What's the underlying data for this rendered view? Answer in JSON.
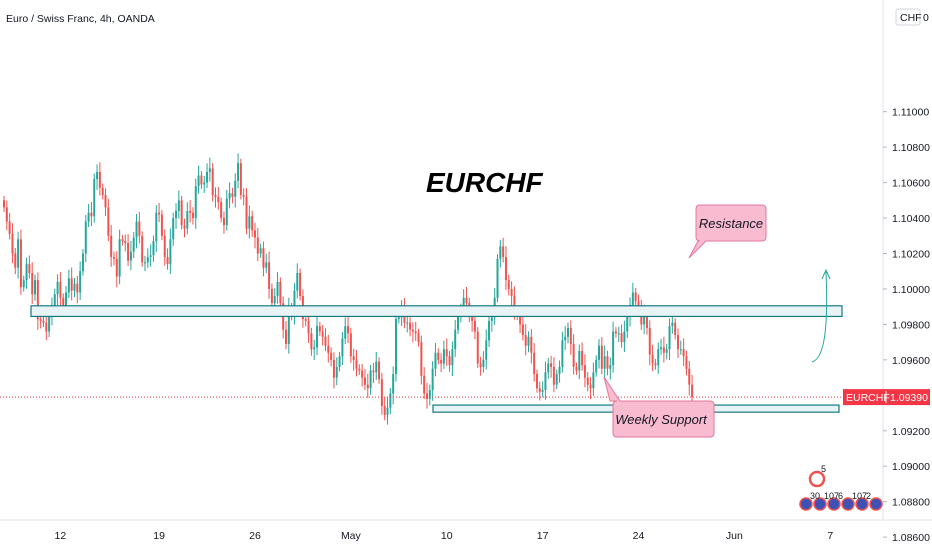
{
  "header": {
    "symbol_title": "Euro / Swiss Franc, 4h, OANDA",
    "currency_label": "CHF",
    "currency_suffix": "0"
  },
  "chart_data": {
    "type": "candlestick",
    "title": "EURCHF",
    "ylim": [
      1.0855,
      1.1163
    ],
    "y_ticks": [
      "1.11000",
      "1.10800",
      "1.10600",
      "1.10400",
      "1.10200",
      "1.10000",
      "1.09800",
      "1.09600",
      "1.09400",
      "1.09200",
      "1.09000",
      "1.08800",
      "1.08600"
    ],
    "y_tick_values": [
      1.11,
      1.108,
      1.106,
      1.104,
      1.102,
      1.1,
      1.098,
      1.096,
      1.094,
      1.092,
      1.09,
      1.088,
      1.086
    ],
    "x_ticks": [
      "12",
      "19",
      "26",
      "May",
      "10",
      "17",
      "24",
      "Jun",
      "7"
    ],
    "x_tick_index": [
      20,
      55,
      89,
      123,
      157,
      191,
      225,
      259,
      293
    ],
    "current_price": {
      "symbol": "EURCHF",
      "value": "1.09390",
      "color": "#f23645"
    },
    "candle_closes": [
      1.1046,
      1.1038,
      1.1031,
      1.102,
      1.1012,
      1.1028,
      1.1001,
      1.1005,
      1.1014,
      1.1009,
      1.0997,
      1.1005,
      1.0983,
      1.0982,
      1.0981,
      1.0976,
      1.0985,
      1.0989,
      1.0997,
      1.1004,
      1.0995,
      1.099,
      1.0998,
      1.1006,
      1.0999,
      1.1003,
      1.0998,
      1.101,
      1.102,
      1.1038,
      1.1043,
      1.1041,
      1.1062,
      1.1066,
      1.1057,
      1.1053,
      1.1046,
      1.103,
      1.1018,
      1.1017,
      1.1007,
      1.1028,
      1.1027,
      1.1026,
      1.1016,
      1.1021,
      1.1029,
      1.1038,
      1.103,
      1.1015,
      1.1015,
      1.1018,
      1.1019,
      1.1027,
      1.1043,
      1.1042,
      1.103,
      1.1018,
      1.1014,
      1.1028,
      1.104,
      1.1044,
      1.105,
      1.1036,
      1.1034,
      1.1044,
      1.1043,
      1.104,
      1.1058,
      1.1064,
      1.1059,
      1.106,
      1.1066,
      1.1068,
      1.1053,
      1.1052,
      1.1049,
      1.104,
      1.1036,
      1.1051,
      1.1054,
      1.1052,
      1.1061,
      1.1071,
      1.1053,
      1.1052,
      1.1034,
      1.1041,
      1.1033,
      1.1029,
      1.102,
      1.1023,
      1.1012,
      1.1015,
      1.1,
      1.0992,
      1.0996,
      1.1004,
      1.0992,
      1.0977,
      1.0969,
      1.0989,
      1.0986,
      1.0999,
      1.1009,
      1.0996,
      1.0983,
      1.0982,
      1.0975,
      1.0966,
      1.0967,
      1.0979,
      1.0976,
      1.0973,
      1.0968,
      1.0964,
      1.096,
      1.095,
      1.0956,
      1.0962,
      1.0972,
      1.0979,
      1.0975,
      1.0962,
      1.096,
      1.0955,
      1.0954,
      1.095,
      1.0946,
      1.0944,
      1.0954,
      1.0953,
      1.0959,
      1.0949,
      1.0934,
      1.0929,
      1.0933,
      1.0941,
      1.0952,
      1.0983,
      1.0984,
      1.099,
      1.0981,
      1.0981,
      1.0977,
      1.0976,
      1.0975,
      1.097,
      1.0951,
      1.0941,
      1.0938,
      1.0943,
      1.0955,
      1.0964,
      1.096,
      1.0958,
      1.0966,
      1.0962,
      1.0957,
      1.0966,
      1.0977,
      1.0986,
      1.0988,
      1.0995,
      1.0992,
      1.0985,
      1.0982,
      1.0976,
      1.0958,
      1.0956,
      1.096,
      1.0971,
      1.0982,
      1.0984,
      1.0995,
      1.1017,
      1.1024,
      1.1018,
      1.1005,
      1.1,
      1.0996,
      1.0987,
      1.0985,
      1.098,
      1.0974,
      1.0968,
      1.0973,
      1.0964,
      1.0952,
      1.0944,
      1.0942,
      1.0943,
      1.0953,
      1.0958,
      1.0956,
      1.0946,
      1.0952,
      1.0956,
      1.0971,
      1.0973,
      1.0978,
      1.0969,
      1.0956,
      1.0954,
      1.0965,
      1.0957,
      1.095,
      1.0946,
      1.0944,
      1.0953,
      1.096,
      1.0968,
      1.0955,
      1.0962,
      1.0955,
      1.0957,
      1.0976,
      1.0975,
      1.0975,
      1.097,
      1.0976,
      1.0985,
      1.0991,
      1.0998,
      1.0993,
      1.0989,
      1.098,
      1.0985,
      1.0978,
      1.0963,
      1.0958,
      1.0957,
      1.0966,
      1.0967,
      1.0964,
      1.0966,
      1.0979,
      1.0981,
      1.0974,
      1.0966,
      1.0966,
      1.0962,
      1.0955,
      1.0946,
      1.0939
    ],
    "annotations": {
      "resistance_label": "Resistance",
      "support_label": "Weekly Support",
      "resistance_zone": [
        1.09845,
        1.09905
      ],
      "support_zone": [
        1.09305,
        1.09345
      ],
      "colors": {
        "zone_fill": "#e8f3f5",
        "zone_stroke": "#137a82",
        "callout_fill": "#f8bbd0",
        "callout_stroke": "#e07a9a",
        "arrow": "#26a69a"
      }
    },
    "colors": {
      "up": "#26a69a",
      "down": "#ef5350"
    }
  },
  "watermark": {
    "badge_number": "5",
    "counts": [
      "30",
      "107",
      "6",
      "107",
      "2"
    ]
  }
}
